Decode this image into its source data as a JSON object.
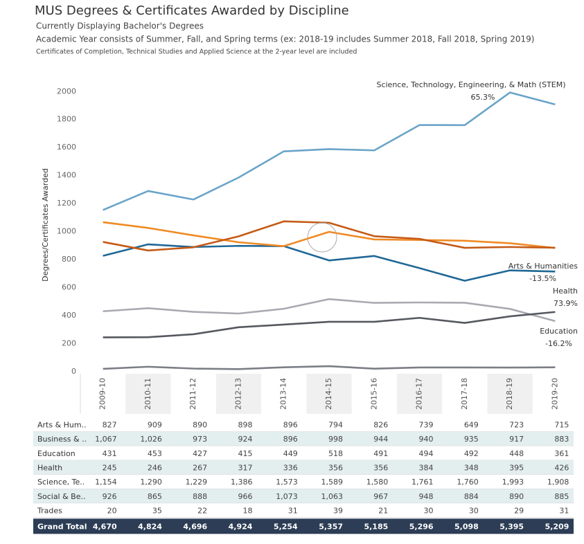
{
  "chart_data": {
    "type": "line",
    "title": "MUS Degrees & Certificates Awarded by Discipline",
    "subtitle": "Currently Displaying Bachelor's Degrees",
    "notes": [
      "Academic Year consists of Summer, Fall, and Spring terms (ex:  2018-19 includes Summer 2018, Fall 2018, Spring 2019)",
      "Certificates of Completion, Technical Studies and Applied Science at the 2-year level are included"
    ],
    "y_label": "Degrees/Certificates Awarded",
    "categories": [
      "2009-10",
      "2010-11",
      "2011-12",
      "2012-13",
      "2013-14",
      "2014-15",
      "2015-16",
      "2016-17",
      "2017-18",
      "2018-19",
      "2019-20"
    ],
    "ylim": [
      -15,
      2110
    ],
    "yticks": [
      0,
      200,
      400,
      600,
      800,
      1000,
      1200,
      1400,
      1600,
      1800,
      2000
    ],
    "grid": false,
    "series": [
      {
        "name": "Arts & Hum..",
        "color": "#1f6796",
        "values": [
          827,
          909,
          890,
          898,
          896,
          794,
          826,
          739,
          649,
          723,
          715
        ]
      },
      {
        "name": "Business & ..",
        "color": "#f08a24",
        "values": [
          1067,
          1026,
          973,
          924,
          896,
          998,
          944,
          940,
          935,
          917,
          883
        ],
        "value_labels": [
          "1,067",
          "1,026",
          "973",
          "924",
          "896",
          "998",
          "944",
          "940",
          "935",
          "917",
          "883"
        ]
      },
      {
        "name": "Education",
        "color": "#a9aab1",
        "values": [
          431,
          453,
          427,
          415,
          449,
          518,
          491,
          494,
          492,
          448,
          361
        ]
      },
      {
        "name": "Health",
        "color": "#55585f",
        "values": [
          245,
          246,
          267,
          317,
          336,
          356,
          356,
          384,
          348,
          395,
          426
        ]
      },
      {
        "name": "Science, Te..",
        "color": "#6aa4c8",
        "values": [
          1154,
          1290,
          1229,
          1386,
          1573,
          1589,
          1580,
          1761,
          1760,
          1993,
          1908
        ],
        "value_labels": [
          "1,154",
          "1,290",
          "1,229",
          "1,386",
          "1,573",
          "1,589",
          "1,580",
          "1,761",
          "1,760",
          "1,993",
          "1,908"
        ]
      },
      {
        "name": "Social & Be..",
        "color": "#c45a16",
        "values": [
          926,
          865,
          888,
          966,
          1073,
          1063,
          967,
          948,
          884,
          890,
          885
        ],
        "value_labels": [
          "926",
          "865",
          "888",
          "966",
          "1,073",
          "1,063",
          "967",
          "948",
          "884",
          "890",
          "885"
        ]
      },
      {
        "name": "Trades",
        "color": "#7b7e86",
        "values": [
          20,
          35,
          22,
          18,
          31,
          39,
          21,
          30,
          30,
          29,
          31
        ]
      }
    ],
    "annotations": [
      {
        "text": "Science, Technology, Engineering, & Math (STEM)"
      },
      {
        "text": "65.3%"
      },
      {
        "text": "Arts & Humanities"
      },
      {
        "text": "-13.5%"
      },
      {
        "text": "Health"
      },
      {
        "text": "73.9%"
      },
      {
        "text": "Education"
      },
      {
        "text": "-16.2%"
      }
    ],
    "grand_total": {
      "name": "Grand Total",
      "values": [
        4670,
        4824,
        4696,
        4924,
        5254,
        5357,
        5185,
        5296,
        5098,
        5395,
        5209
      ],
      "value_labels": [
        "4,670",
        "4,824",
        "4,696",
        "4,924",
        "5,254",
        "5,357",
        "5,185",
        "5,296",
        "5,098",
        "5,395",
        "5,209"
      ]
    }
  }
}
